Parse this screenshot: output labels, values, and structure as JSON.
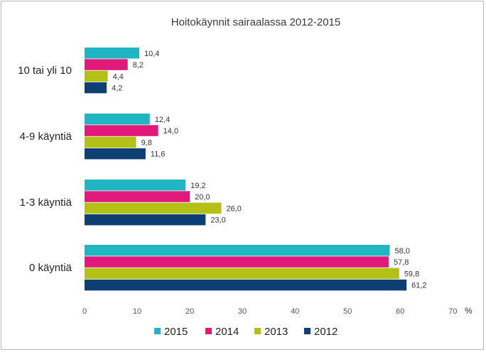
{
  "chart_data": {
    "type": "bar",
    "orientation": "horizontal",
    "title": "Hoitokäynnit sairaalassa 2012-2015",
    "categories": [
      "10 tai yli 10",
      "4-9 käyntiä",
      "1-3 käyntiä",
      "0 käyntiä"
    ],
    "series": [
      {
        "name": "2015",
        "color": "#1fb5c3",
        "values": [
          10.4,
          12.4,
          19.2,
          58.0
        ],
        "labels": [
          "10,4",
          "12,4",
          "19,2",
          "58,0"
        ]
      },
      {
        "name": "2014",
        "color": "#e0197a",
        "values": [
          8.2,
          14.0,
          20.0,
          57.8
        ],
        "labels": [
          "8,2",
          "14,0",
          "20,0",
          "57,8"
        ]
      },
      {
        "name": "2013",
        "color": "#b3c016",
        "values": [
          4.4,
          9.8,
          26.0,
          59.8
        ],
        "labels": [
          "4,4",
          "9,8",
          "26,0",
          "59,8"
        ]
      },
      {
        "name": "2012",
        "color": "#0d3f73",
        "values": [
          4.2,
          11.6,
          23.0,
          61.2
        ],
        "labels": [
          "4,2",
          "11,6",
          "23,0",
          "61,2"
        ]
      }
    ],
    "xlim": [
      0,
      70
    ],
    "xticks": [
      0,
      10,
      20,
      30,
      40,
      50,
      60,
      70
    ],
    "x_unit": "%",
    "grid": false,
    "legend_position": "bottom"
  }
}
